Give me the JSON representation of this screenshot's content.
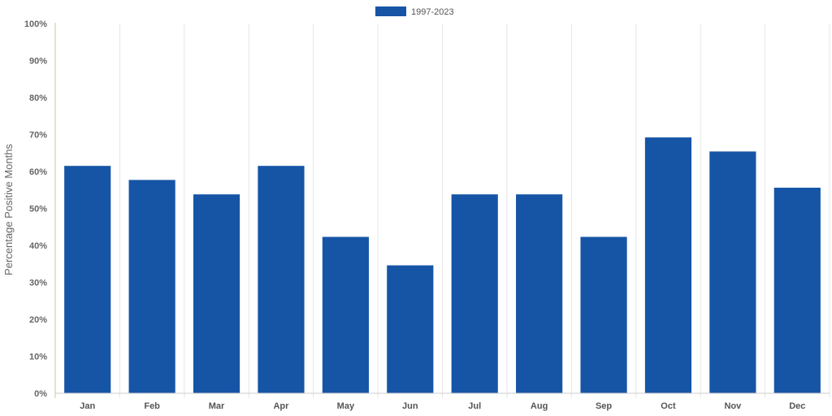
{
  "chart_data": {
    "type": "bar",
    "categories": [
      "Jan",
      "Feb",
      "Mar",
      "Apr",
      "May",
      "Jun",
      "Jul",
      "Aug",
      "Sep",
      "Oct",
      "Nov",
      "Dec"
    ],
    "series": [
      {
        "name": "1997-2023",
        "values": [
          61.5,
          57.7,
          53.8,
          61.5,
          42.3,
          34.6,
          53.8,
          53.8,
          42.3,
          69.2,
          65.4,
          55.6
        ],
        "color": "#1655A6"
      }
    ],
    "title": "",
    "xlabel": "",
    "ylabel": "Percentage Positive Months",
    "ylim": [
      0,
      100
    ],
    "yticks": [
      "0%",
      "10%",
      "20%",
      "30%",
      "40%",
      "50%",
      "60%",
      "70%",
      "80%",
      "90%",
      "100%"
    ],
    "grid": "vertical",
    "legend": "top-center"
  }
}
